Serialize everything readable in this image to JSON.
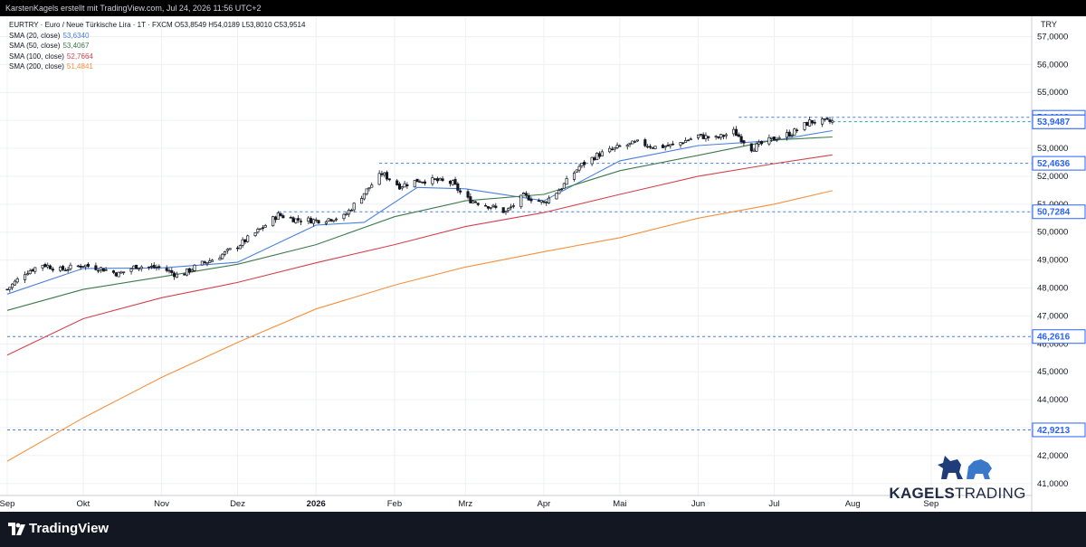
{
  "header": {
    "author_line": "KarstenKagels erstellt mit TradingView.com, Jul 24, 2026 11:56 UTC+2"
  },
  "legend": {
    "symbol_line": "EURTRY · Euro  / Neue Türkische Lira · 1T · FXCM  O53,8549  H54,0189  L53,8010  C53,9514",
    "sma": [
      {
        "label": "SMA (20, close)",
        "value": "53,6340",
        "color": "#4a7fe0"
      },
      {
        "label": "SMA (50, close)",
        "value": "53,4067",
        "color": "#3d7a4a"
      },
      {
        "label": "SMA (100, close)",
        "value": "52,7664",
        "color": "#d2424d"
      },
      {
        "label": "SMA (200, close)",
        "value": "51,4841",
        "color": "#f5913e"
      }
    ]
  },
  "footer": {
    "brand": "TradingView"
  },
  "logo": {
    "text_bold": "KAGELS",
    "text_light": "TRADING"
  },
  "chart_data": {
    "type": "candlestick",
    "currency": "TRY",
    "ylim": [
      40.8,
      57.5
    ],
    "y_ticks": [
      "57,0000",
      "56,0000",
      "55,0000",
      "54,0000",
      "53,0000",
      "52,0000",
      "51,0000",
      "50,0000",
      "49,0000",
      "48,0000",
      "47,0000",
      "46,0000",
      "45,0000",
      "44,0000",
      "43,0000",
      "42,0000",
      "41,0000"
    ],
    "x_labels": [
      "Sep",
      "Okt",
      "Nov",
      "Dez",
      "2026",
      "Feb",
      "Mrz",
      "Apr",
      "Mai",
      "Jun",
      "Jul",
      "Aug",
      "Sep"
    ],
    "x_range": [
      "2025-09-01",
      "2026-09-30"
    ],
    "price_tags": [
      {
        "value": 54.1118,
        "label": "54,1118",
        "style": "outline",
        "x_start": "2026-06-17"
      },
      {
        "value": 53.9514,
        "label": "53,9514",
        "style": "current",
        "x_start": "2026-07-24"
      },
      {
        "value": 53.9487,
        "label": "53,9487",
        "style": "outline",
        "x_start": null
      },
      {
        "value": 52.4636,
        "label": "52,4636",
        "style": "outline",
        "x_start": "2026-01-26"
      },
      {
        "value": 50.7284,
        "label": "50,7284",
        "style": "outline",
        "x_start": "2025-12-17"
      },
      {
        "value": 46.2616,
        "label": "46,2616",
        "style": "outline",
        "x_start": "2025-09-01"
      },
      {
        "value": 42.9213,
        "label": "42,9213",
        "style": "outline",
        "x_start": "2025-09-01"
      }
    ],
    "close_series": {
      "start_date": "2025-09-01",
      "end_date": "2026-07-24",
      "anchors": [
        [
          "2025-09-01",
          47.95
        ],
        [
          "2025-09-08",
          48.55
        ],
        [
          "2025-09-15",
          48.85
        ],
        [
          "2025-09-22",
          48.65
        ],
        [
          "2025-10-01",
          48.82
        ],
        [
          "2025-10-08",
          48.7
        ],
        [
          "2025-10-15",
          48.5
        ],
        [
          "2025-10-22",
          48.78
        ],
        [
          "2025-11-01",
          48.72
        ],
        [
          "2025-11-08",
          48.42
        ],
        [
          "2025-11-15",
          48.8
        ],
        [
          "2025-11-22",
          49.05
        ],
        [
          "2025-12-01",
          49.5
        ],
        [
          "2025-12-10",
          50.1
        ],
        [
          "2025-12-17",
          50.62
        ],
        [
          "2025-12-24",
          50.45
        ],
        [
          "2026-01-01",
          50.42
        ],
        [
          "2026-01-12",
          50.55
        ],
        [
          "2026-01-20",
          51.4
        ],
        [
          "2026-01-27",
          52.1
        ],
        [
          "2026-02-03",
          51.65
        ],
        [
          "2026-02-10",
          51.85
        ],
        [
          "2026-02-17",
          51.85
        ],
        [
          "2026-02-24",
          51.75
        ],
        [
          "2026-03-01",
          51.2
        ],
        [
          "2026-03-10",
          50.95
        ],
        [
          "2026-03-17",
          50.72
        ],
        [
          "2026-03-24",
          51.3
        ],
        [
          "2026-04-01",
          51.05
        ],
        [
          "2026-04-08",
          51.6
        ],
        [
          "2026-04-15",
          52.35
        ],
        [
          "2026-04-22",
          52.75
        ],
        [
          "2026-05-01",
          53.05
        ],
        [
          "2026-05-08",
          53.2
        ],
        [
          "2026-05-15",
          53.05
        ],
        [
          "2026-05-22",
          53.1
        ],
        [
          "2026-06-01",
          53.45
        ],
        [
          "2026-06-08",
          53.35
        ],
        [
          "2026-06-15",
          53.6
        ],
        [
          "2026-06-22",
          53.0
        ],
        [
          "2026-07-01",
          53.35
        ],
        [
          "2026-07-08",
          53.55
        ],
        [
          "2026-07-15",
          53.95
        ],
        [
          "2026-07-24",
          53.95
        ]
      ]
    },
    "series": [
      {
        "name": "SMA (20, close)",
        "color": "#4a7fe0",
        "points": [
          [
            "2025-09-01",
            47.78
          ],
          [
            "2025-10-01",
            48.7
          ],
          [
            "2025-11-01",
            48.72
          ],
          [
            "2025-12-01",
            48.92
          ],
          [
            "2026-01-01",
            50.25
          ],
          [
            "2026-01-20",
            50.35
          ],
          [
            "2026-02-10",
            51.6
          ],
          [
            "2026-03-01",
            51.55
          ],
          [
            "2026-04-01",
            51.12
          ],
          [
            "2026-05-01",
            52.55
          ],
          [
            "2026-06-01",
            53.1
          ],
          [
            "2026-07-01",
            53.28
          ],
          [
            "2026-07-24",
            53.634
          ]
        ]
      },
      {
        "name": "SMA (50, close)",
        "color": "#3d7a4a",
        "points": [
          [
            "2025-09-01",
            47.2
          ],
          [
            "2025-10-01",
            47.95
          ],
          [
            "2025-11-01",
            48.4
          ],
          [
            "2025-12-01",
            48.85
          ],
          [
            "2026-01-01",
            49.55
          ],
          [
            "2026-02-01",
            50.55
          ],
          [
            "2026-03-01",
            51.12
          ],
          [
            "2026-04-01",
            51.35
          ],
          [
            "2026-05-01",
            52.2
          ],
          [
            "2026-06-01",
            52.75
          ],
          [
            "2026-07-01",
            53.3
          ],
          [
            "2026-07-24",
            53.4067
          ]
        ]
      },
      {
        "name": "SMA (100, close)",
        "color": "#d2424d",
        "points": [
          [
            "2025-09-01",
            45.6
          ],
          [
            "2025-10-01",
            46.9
          ],
          [
            "2025-11-01",
            47.65
          ],
          [
            "2025-12-01",
            48.2
          ],
          [
            "2026-01-01",
            48.9
          ],
          [
            "2026-02-01",
            49.55
          ],
          [
            "2026-03-01",
            50.2
          ],
          [
            "2026-04-01",
            50.7
          ],
          [
            "2026-05-01",
            51.35
          ],
          [
            "2026-06-01",
            52.0
          ],
          [
            "2026-07-01",
            52.45
          ],
          [
            "2026-07-24",
            52.7664
          ]
        ]
      },
      {
        "name": "SMA (200, close)",
        "color": "#f5913e",
        "points": [
          [
            "2025-09-01",
            41.8
          ],
          [
            "2025-10-01",
            43.35
          ],
          [
            "2025-11-01",
            44.8
          ],
          [
            "2025-12-01",
            46.05
          ],
          [
            "2026-01-01",
            47.25
          ],
          [
            "2026-02-01",
            48.1
          ],
          [
            "2026-03-01",
            48.75
          ],
          [
            "2026-04-01",
            49.3
          ],
          [
            "2026-05-01",
            49.8
          ],
          [
            "2026-06-01",
            50.5
          ],
          [
            "2026-07-01",
            51.0
          ],
          [
            "2026-07-24",
            51.4841
          ]
        ]
      }
    ]
  }
}
